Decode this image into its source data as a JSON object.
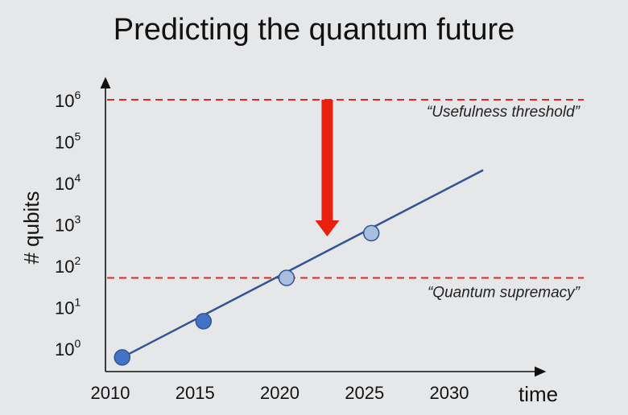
{
  "chart_data": {
    "type": "line",
    "title": "Predicting the quantum future",
    "xlabel": "time",
    "ylabel": "# qubits",
    "y_scale": "log",
    "xlim": [
      2010,
      2030
    ],
    "x_ticks": [
      "2010",
      "2015",
      "2020",
      "2025",
      "2030"
    ],
    "x_tick_values": [
      2010,
      2015,
      2020,
      2025,
      2030
    ],
    "y_ticks": [
      {
        "base": "10",
        "exp": "0"
      },
      {
        "base": "10",
        "exp": "1"
      },
      {
        "base": "10",
        "exp": "2"
      },
      {
        "base": "10",
        "exp": "3"
      },
      {
        "base": "10",
        "exp": "4"
      },
      {
        "base": "10",
        "exp": "5"
      },
      {
        "base": "10",
        "exp": "6"
      }
    ],
    "trend_line": {
      "x": [
        2010.7,
        2032.0
      ],
      "y": [
        0.6,
        20000
      ],
      "color": "#2f5597"
    },
    "points": [
      {
        "x": 2010.7,
        "y": 0.6,
        "color": "#4472c4"
      },
      {
        "x": 2015.5,
        "y": 4.5,
        "color": "#4472c4"
      },
      {
        "x": 2020.4,
        "y": 50,
        "color": "#a9bfe0"
      },
      {
        "x": 2025.4,
        "y": 600,
        "color": "#a9bfe0"
      }
    ],
    "thresholds": [
      {
        "y": 1000000,
        "label": "“Usefulness threshold”",
        "color": "#e0281e"
      },
      {
        "y": 50,
        "label": "“Quantum supremacy”",
        "color": "#e0281e"
      }
    ],
    "arrow": {
      "x": 2022.8,
      "y_from": 1000000,
      "y_to": 500,
      "color": "#e8200f"
    },
    "grid": false,
    "legend": "none"
  }
}
